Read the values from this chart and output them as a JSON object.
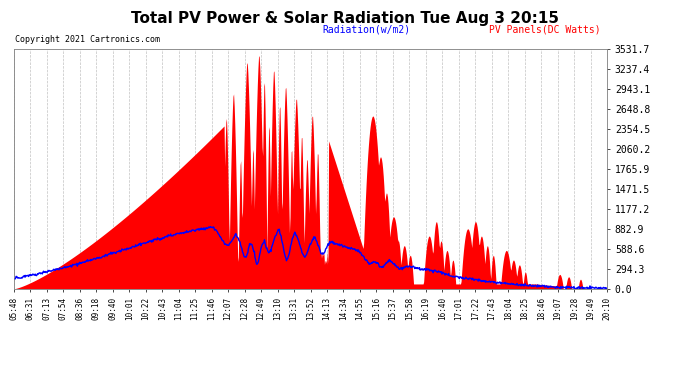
{
  "title": "Total PV Power & Solar Radiation Tue Aug 3 20:15",
  "copyright": "Copyright 2021 Cartronics.com",
  "legend_radiation": "Radiation(w/m2)",
  "legend_pv": "PV Panels(DC Watts)",
  "ymax": 3531.7,
  "yticks": [
    0.0,
    294.3,
    588.6,
    882.9,
    1177.2,
    1471.5,
    1765.9,
    2060.2,
    2354.5,
    2648.8,
    2943.1,
    3237.4,
    3531.7
  ],
  "bg_color": "#ffffff",
  "grid_color": "#bbbbbb",
  "pv_fill_color": "#ff0000",
  "radiation_line_color": "#0000ff",
  "title_color": "#000000",
  "copyright_color": "#000000",
  "legend_radiation_color": "#0000ff",
  "legend_pv_color": "#ff0000",
  "xtick_labels": [
    "05:48",
    "06:31",
    "07:13",
    "07:54",
    "08:36",
    "09:18",
    "09:40",
    "10:01",
    "10:22",
    "10:43",
    "11:04",
    "11:25",
    "11:46",
    "12:07",
    "12:28",
    "12:49",
    "13:10",
    "13:31",
    "13:52",
    "14:13",
    "14:34",
    "14:55",
    "15:16",
    "15:37",
    "15:58",
    "16:19",
    "16:40",
    "17:01",
    "17:22",
    "17:43",
    "18:04",
    "18:25",
    "18:46",
    "19:07",
    "19:28",
    "19:49",
    "20:10"
  ]
}
